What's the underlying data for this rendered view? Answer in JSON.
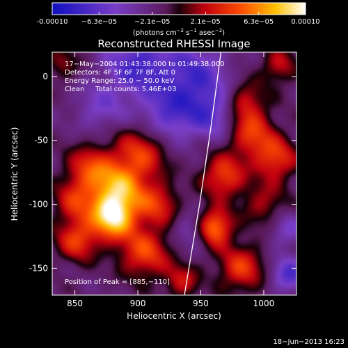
{
  "chart_data": {
    "type": "heatmap",
    "title": "Reconstructed RHESSI Image",
    "xlabel": "Heliocentric X (arcsec)",
    "ylabel": "Heliocentric Y (arcsec)",
    "xlim": [
      832,
      1026
    ],
    "ylim": [
      -171,
      19
    ],
    "x_ticks": [
      {
        "value": 850,
        "label": "850"
      },
      {
        "value": 900,
        "label": "900"
      },
      {
        "value": 950,
        "label": "950"
      },
      {
        "value": 1000,
        "label": "1000"
      }
    ],
    "y_ticks": [
      {
        "value": 0,
        "label": "0"
      },
      {
        "value": -50,
        "label": "-50"
      },
      {
        "value": -100,
        "label": "-100"
      },
      {
        "value": -150,
        "label": "-150"
      }
    ],
    "colorbar": {
      "range": [
        -0.0001,
        0.0001
      ],
      "ticks": [
        {
          "value": -0.0001,
          "label": "-0.00010"
        },
        {
          "value": -6.3e-05,
          "label": "−6.3e−05"
        },
        {
          "value": -2.1e-05,
          "label": "−2.1e−05"
        },
        {
          "value": 2.1e-05,
          "label": "2.1e−05"
        },
        {
          "value": 6.3e-05,
          "label": "6.3e−05"
        },
        {
          "value": 0.0001,
          "label": "0.00010"
        }
      ],
      "unit_main": "(photons cm",
      "unit_exp1": "−2",
      "unit_mid": " s",
      "unit_exp2": "−1",
      "unit_end": " asec",
      "unit_exp3": "−2",
      "unit_close": ")"
    },
    "annotations": [
      "17−May−2004 01:43:38.000 to 01:49:38.000",
      "Detectors: 4F 5F 6F 7F 8F, Att 0",
      "Energy Range: 25.0 − 50.0 keV",
      "Clean     Total counts: 5.46E+03"
    ],
    "peak_label": "Position of Peak = [885,−110]",
    "peak": [
      885,
      -110
    ],
    "limb_curve": [
      [
        966,
        19
      ],
      [
        958,
        -40
      ],
      [
        949,
        -100
      ],
      [
        937,
        -171
      ]
    ],
    "sources": [
      {
        "x": 880,
        "y": -110,
        "amp": 1.0,
        "s": 12
      },
      {
        "x": 885,
        "y": -88,
        "amp": 0.75,
        "s": 14
      },
      {
        "x": 902,
        "y": -60,
        "amp": 0.55,
        "s": 15
      },
      {
        "x": 862,
        "y": -72,
        "amp": 0.55,
        "s": 13
      },
      {
        "x": 850,
        "y": -98,
        "amp": 0.45,
        "s": 12
      },
      {
        "x": 852,
        "y": -128,
        "amp": 0.55,
        "s": 12
      },
      {
        "x": 905,
        "y": -138,
        "amp": 0.6,
        "s": 14
      },
      {
        "x": 915,
        "y": -100,
        "amp": 0.5,
        "s": 12
      },
      {
        "x": 960,
        "y": -118,
        "amp": 0.85,
        "s": 10
      },
      {
        "x": 968,
        "y": -78,
        "amp": 0.6,
        "s": 12
      },
      {
        "x": 982,
        "y": -150,
        "amp": 0.55,
        "s": 13
      },
      {
        "x": 990,
        "y": -45,
        "amp": 0.55,
        "s": 13
      },
      {
        "x": 1010,
        "y": -65,
        "amp": 0.55,
        "s": 12
      },
      {
        "x": 1000,
        "y": -100,
        "amp": 0.35,
        "s": 12
      },
      {
        "x": 985,
        "y": -20,
        "amp": 0.45,
        "s": 11
      },
      {
        "x": 1012,
        "y": 8,
        "amp": 0.4,
        "s": 10
      },
      {
        "x": 840,
        "y": 10,
        "amp": 0.3,
        "s": 9
      },
      {
        "x": 935,
        "y": -160,
        "amp": 0.4,
        "s": 10
      },
      {
        "x": 900,
        "y": 10,
        "amp": -0.55,
        "s": 18
      },
      {
        "x": 945,
        "y": 0,
        "amp": -0.5,
        "s": 18
      },
      {
        "x": 925,
        "y": -30,
        "amp": -0.45,
        "s": 16
      },
      {
        "x": 960,
        "y": -30,
        "amp": -0.4,
        "s": 14
      },
      {
        "x": 1020,
        "y": -155,
        "amp": -0.5,
        "s": 10
      },
      {
        "x": 870,
        "y": -25,
        "amp": -0.3,
        "s": 14
      },
      {
        "x": 945,
        "y": -120,
        "amp": -0.35,
        "s": 10
      },
      {
        "x": 1018,
        "y": -120,
        "amp": -0.3,
        "s": 10
      }
    ]
  },
  "footer": {
    "timestamp": "18−Jun−2013 16:23"
  }
}
